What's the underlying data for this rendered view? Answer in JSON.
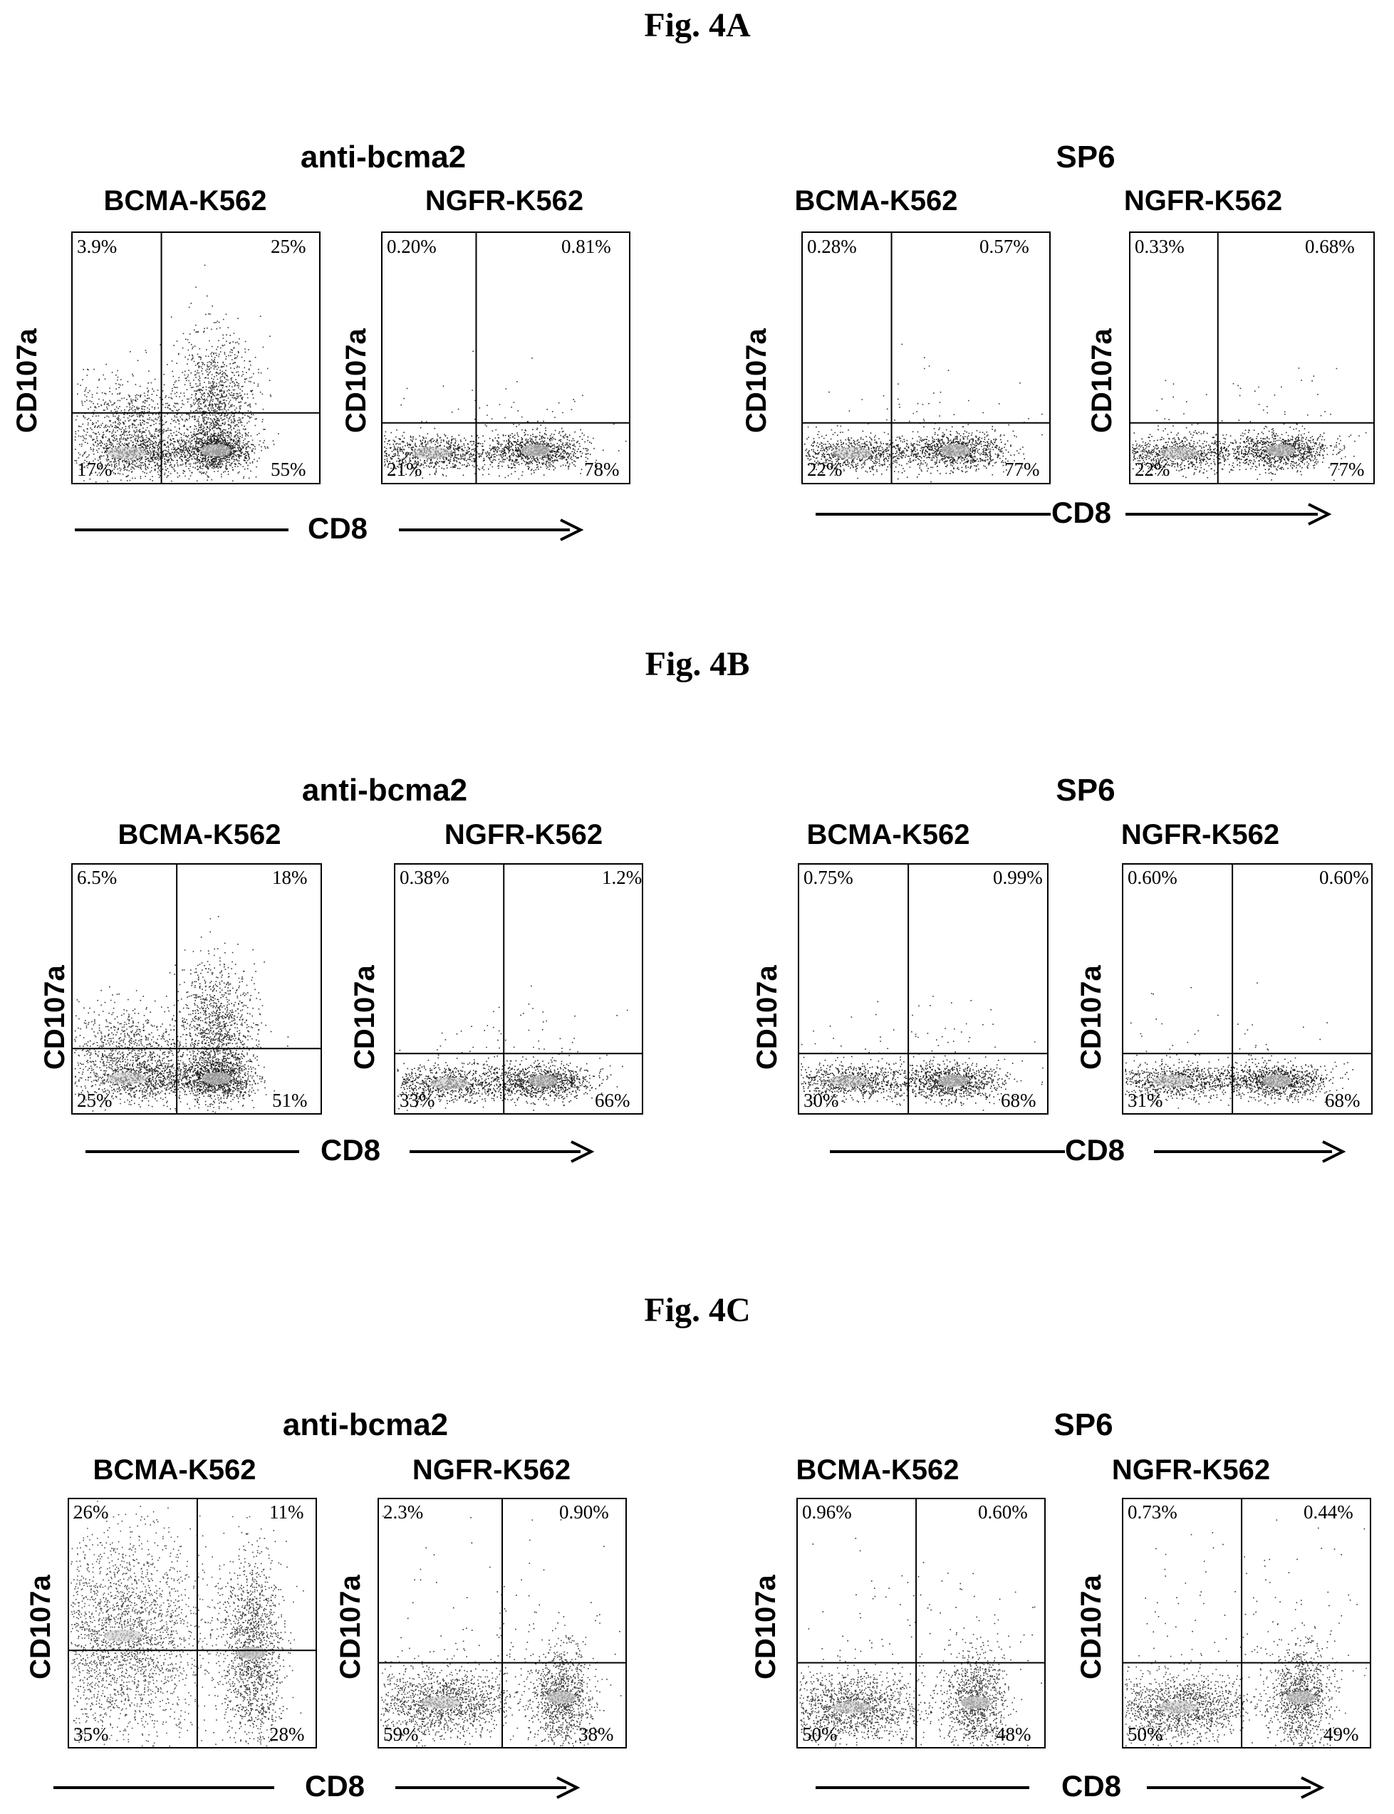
{
  "figures": [
    {
      "title": "Fig. 4A",
      "groups": [
        {
          "title": "anti-bcma2",
          "panels": [
            {
              "title": "BCMA-K562",
              "ylabel": "CD107a",
              "quadrants": {
                "ul": "3.9%",
                "ur": "25%",
                "ll": "17%",
                "lr": "55%"
              }
            },
            {
              "title": "NGFR-K562",
              "ylabel": "CD107a",
              "quadrants": {
                "ul": "0.20%",
                "ur": "0.81%",
                "ll": "21%",
                "lr": "78%"
              }
            }
          ],
          "xlabel": "CD8"
        },
        {
          "title": "SP6",
          "panels": [
            {
              "title": "BCMA-K562",
              "ylabel": "CD107a",
              "quadrants": {
                "ul": "0.28%",
                "ur": "0.57%",
                "ll": "22%",
                "lr": "77%"
              }
            },
            {
              "title": "NGFR-K562",
              "ylabel": "CD107a",
              "quadrants": {
                "ul": "0.33%",
                "ur": "0.68%",
                "ll": "22%",
                "lr": "77%"
              }
            }
          ],
          "xlabel": "CD8"
        }
      ]
    },
    {
      "title": "Fig. 4B",
      "groups": [
        {
          "title": "anti-bcma2",
          "panels": [
            {
              "title": "BCMA-K562",
              "ylabel": "CD107a",
              "quadrants": {
                "ul": "6.5%",
                "ur": "18%",
                "ll": "25%",
                "lr": "51%"
              }
            },
            {
              "title": "NGFR-K562",
              "ylabel": "CD107a",
              "quadrants": {
                "ul": "0.38%",
                "ur": "1.2%",
                "ll": "33%",
                "lr": "66%"
              }
            }
          ],
          "xlabel": "CD8"
        },
        {
          "title": "SP6",
          "panels": [
            {
              "title": "BCMA-K562",
              "ylabel": "CD107a",
              "quadrants": {
                "ul": "0.75%",
                "ur": "0.99%",
                "ll": "30%",
                "lr": "68%"
              }
            },
            {
              "title": "NGFR-K562",
              "ylabel": "CD107a",
              "quadrants": {
                "ul": "0.60%",
                "ur": "0.60%",
                "ll": "31%",
                "lr": "68%"
              }
            }
          ],
          "xlabel": "CD8"
        }
      ]
    },
    {
      "title": "Fig. 4C",
      "groups": [
        {
          "title": "anti-bcma2",
          "panels": [
            {
              "title": "BCMA-K562",
              "ylabel": "CD107a",
              "quadrants": {
                "ul": "26%",
                "ur": "11%",
                "ll": "35%",
                "lr": "28%"
              }
            },
            {
              "title": "NGFR-K562",
              "ylabel": "CD107a",
              "quadrants": {
                "ul": "2.3%",
                "ur": "0.90%",
                "ll": "59%",
                "lr": "38%"
              }
            }
          ],
          "xlabel": "CD8"
        },
        {
          "title": "SP6",
          "panels": [
            {
              "title": "BCMA-K562",
              "ylabel": "CD107a",
              "quadrants": {
                "ul": "0.96%",
                "ur": "0.60%",
                "ll": "50%",
                "lr": "48%"
              }
            },
            {
              "title": "NGFR-K562",
              "ylabel": "CD107a",
              "quadrants": {
                "ul": "0.73%",
                "ur": "0.44%",
                "ll": "50%",
                "lr": "49%"
              }
            }
          ],
          "xlabel": "CD8"
        }
      ]
    }
  ]
}
